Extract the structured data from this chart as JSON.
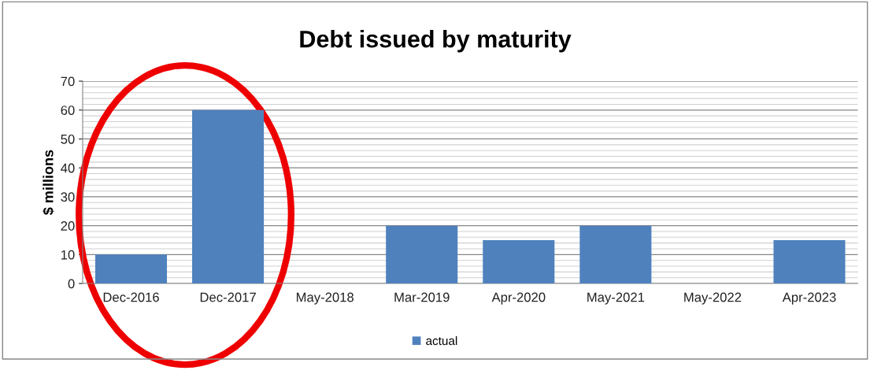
{
  "chart_data": {
    "type": "bar",
    "title": "Debt issued by maturity",
    "ylabel": "$ millions",
    "categories": [
      "Dec-2016",
      "Dec-2017",
      "May-2018",
      "Mar-2019",
      "Apr-2020",
      "May-2021",
      "May-2022",
      "Apr-2023"
    ],
    "series": [
      {
        "name": "actual",
        "color": "#4f81bd",
        "values": [
          10,
          60,
          0,
          20,
          15,
          20,
          0,
          15
        ]
      }
    ],
    "ylim": [
      0,
      70
    ],
    "yticks": [
      0,
      10,
      20,
      30,
      40,
      50,
      60,
      70
    ],
    "grid": "y",
    "legend": "bottom"
  }
}
